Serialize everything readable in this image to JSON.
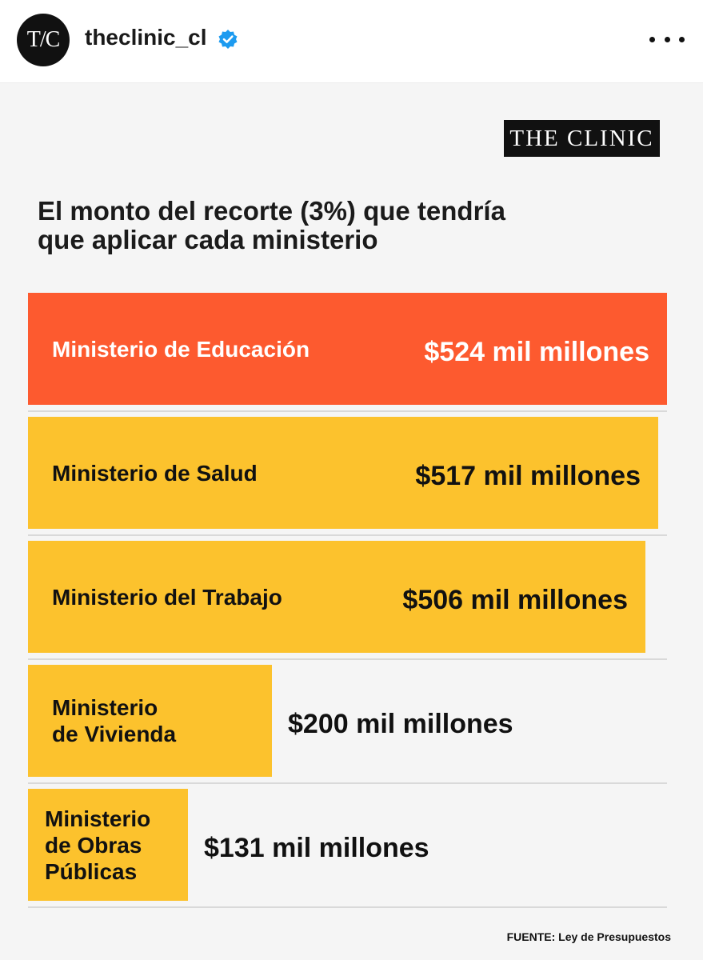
{
  "post": {
    "avatar_text": "T/C",
    "username": "theclinic_cl",
    "verified": true,
    "icons": {
      "verified": "verified-badge-icon",
      "more": "more-options-icon"
    },
    "colors": {
      "verified": "#1d9bf0"
    }
  },
  "infographic": {
    "logo": "THE CLINIC",
    "title_line1": "El monto del recorte (3%) que tendría",
    "title_line2": "que aplicar cada ministerio",
    "source": "FUENTE: Ley de Presupuestos",
    "colors": {
      "highlight": "#fd5a2f",
      "bar": "#fcc22d",
      "background": "#f5f5f5"
    }
  },
  "chart_data": {
    "type": "bar",
    "orientation": "horizontal",
    "title": "El monto del recorte (3%) que tendría que aplicar cada ministerio",
    "unit": "mil millones",
    "categories": [
      "Ministerio de Educación",
      "Ministerio de Salud",
      "Ministerio del Trabajo",
      "Ministerio de Vivienda",
      "Ministerio de Obras Públicas"
    ],
    "values": [
      524,
      517,
      506,
      200,
      131
    ],
    "data_labels": [
      "$524 mil millones",
      "$517 mil millones",
      "$506 mil millones",
      "$200 mil millones",
      "$131 mil millones"
    ],
    "label_lines": [
      [
        "Ministerio de Educación"
      ],
      [
        "Ministerio de Salud"
      ],
      [
        "Ministerio del Trabajo"
      ],
      [
        "Ministerio",
        "de Vivienda"
      ],
      [
        "Ministerio",
        "de Obras",
        "Públicas"
      ]
    ],
    "highlight_index": 0
  }
}
